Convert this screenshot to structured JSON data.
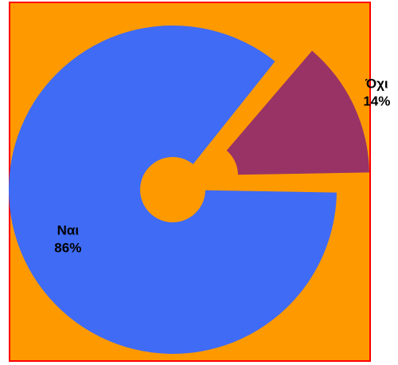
{
  "chart_data": {
    "type": "pie",
    "style": "exploded donut",
    "slices": [
      {
        "label": "Ναι",
        "value": 86,
        "value_label": "86%",
        "color": "#3f6bf5"
      },
      {
        "label": "Όχι",
        "value": 14,
        "value_label": "14%",
        "color": "#993366"
      }
    ],
    "legend": "none",
    "background_color": "#ff9900",
    "frame_color": "#ff0000"
  }
}
